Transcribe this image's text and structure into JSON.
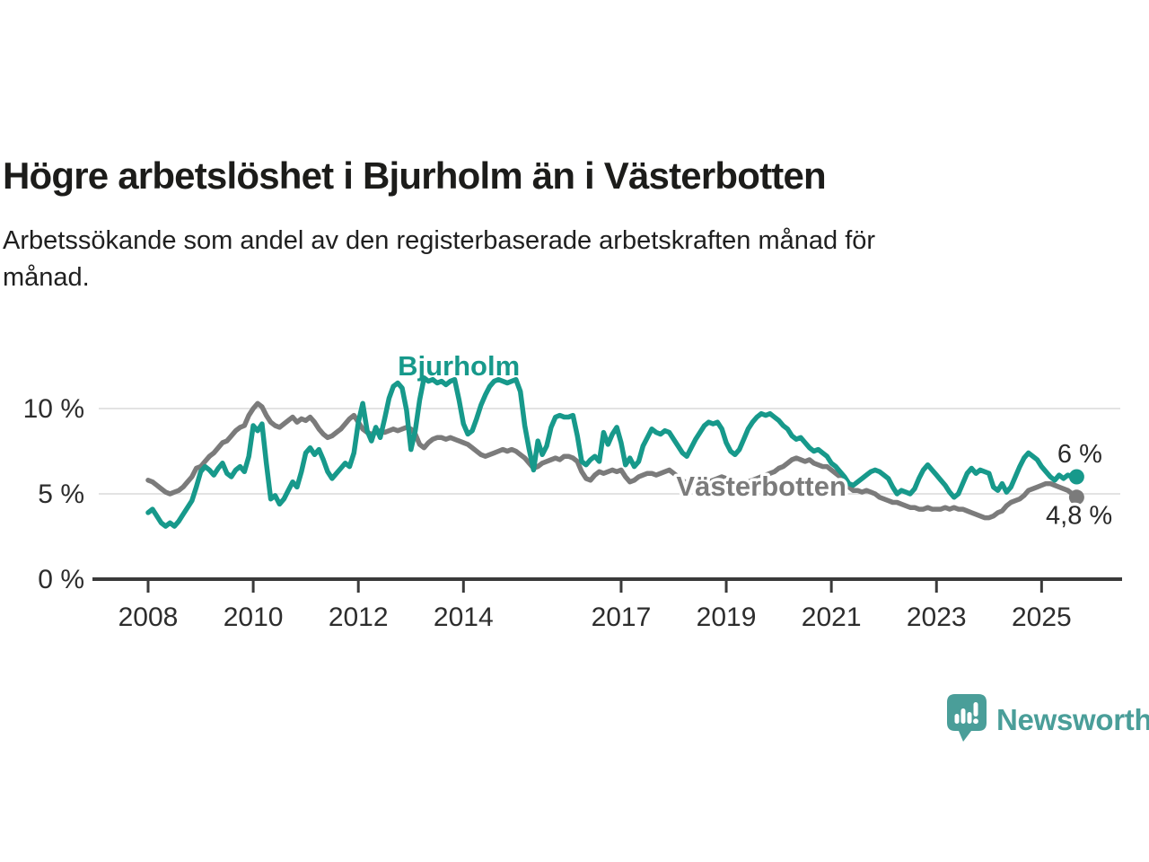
{
  "header": {
    "title": "Högre arbetslöshet i Bjurholm än i Västerbotten",
    "subtitle_lines": [
      "Arbetssökande som andel av den registerbaserade arbetskraften månad för",
      "månad."
    ]
  },
  "footer": {
    "brand": "Newsworthy",
    "logo_icon": "speech-bubble-bar-chart",
    "brand_color": "#4a9e99"
  },
  "chart_data": {
    "type": "line",
    "frequency": "monthly",
    "start": "2008-01",
    "end": "2025-09",
    "grid": "horizontal-only",
    "legend": "inline-labels",
    "x_axis": {
      "tick_years": [
        2008,
        2010,
        2012,
        2014,
        2017,
        2019,
        2021,
        2023,
        2025
      ],
      "range_years": [
        2007.0,
        2026.5
      ]
    },
    "y_axis": {
      "unit": "%",
      "range": [
        0,
        13
      ],
      "ticks": [
        {
          "value": 0,
          "label": "0 %"
        },
        {
          "value": 5,
          "label": "5 %"
        },
        {
          "value": 10,
          "label": "10 %"
        }
      ]
    },
    "colors": {
      "grid": "#dadada",
      "axis": "#3a3a3a",
      "tick_text": "#2d2d2d",
      "bjurholm": "#17998b",
      "vasterbotten": "#7b7b7b"
    },
    "series": [
      {
        "name": "Bjurholm",
        "color": "#17998b",
        "end_value": 6.0,
        "end_label": "6 %",
        "values": [
          3.9,
          4.1,
          3.7,
          3.3,
          3.1,
          3.3,
          3.1,
          3.4,
          3.8,
          4.2,
          4.6,
          5.4,
          6.3,
          6.6,
          6.4,
          6.1,
          6.5,
          6.8,
          6.2,
          6.0,
          6.4,
          6.6,
          6.3,
          7.2,
          9.0,
          8.7,
          9.1,
          6.8,
          4.7,
          4.9,
          4.4,
          4.7,
          5.2,
          5.7,
          5.4,
          6.3,
          7.4,
          7.7,
          7.3,
          7.6,
          7.0,
          6.3,
          5.9,
          6.2,
          6.5,
          6.8,
          6.6,
          7.4,
          9.2,
          10.3,
          8.7,
          8.1,
          8.9,
          8.3,
          9.4,
          10.6,
          11.3,
          11.5,
          11.2,
          9.9,
          7.6,
          8.7,
          10.5,
          11.8,
          11.6,
          11.7,
          11.5,
          11.6,
          11.4,
          11.6,
          11.7,
          10.5,
          9.1,
          8.5,
          8.7,
          9.4,
          10.2,
          10.8,
          11.3,
          11.6,
          11.7,
          11.6,
          11.5,
          11.6,
          11.7,
          11.0,
          9.0,
          7.6,
          6.4,
          8.1,
          7.3,
          7.8,
          8.9,
          9.5,
          9.6,
          9.5,
          9.5,
          9.6,
          8.4,
          6.9,
          6.7,
          7.0,
          7.2,
          6.9,
          8.6,
          7.9,
          8.5,
          8.9,
          8.0,
          6.7,
          7.1,
          6.6,
          6.9,
          7.8,
          8.3,
          8.8,
          8.6,
          8.5,
          8.7,
          8.6,
          8.2,
          7.8,
          7.4,
          7.2,
          7.7,
          8.2,
          8.6,
          9.0,
          9.2,
          9.1,
          9.2,
          8.8,
          8.0,
          7.5,
          7.3,
          7.6,
          8.2,
          8.8,
          9.2,
          9.5,
          9.7,
          9.6,
          9.7,
          9.5,
          9.3,
          9.0,
          8.8,
          8.4,
          8.2,
          8.3,
          8.0,
          7.7,
          7.5,
          7.6,
          7.4,
          7.2,
          6.8,
          6.6,
          6.3,
          6.0,
          5.6,
          5.5,
          5.7,
          5.9,
          6.1,
          6.3,
          6.4,
          6.3,
          6.1,
          5.9,
          5.4,
          5.0,
          5.2,
          5.1,
          5.0,
          5.3,
          5.9,
          6.4,
          6.7,
          6.4,
          6.1,
          5.8,
          5.5,
          5.1,
          4.8,
          5.0,
          5.6,
          6.2,
          6.5,
          6.2,
          6.4,
          6.3,
          6.2,
          5.4,
          5.2,
          5.6,
          5.1,
          5.4,
          6.0,
          6.6,
          7.1,
          7.4,
          7.2,
          7.0,
          6.6,
          6.3,
          6.0,
          5.8,
          6.1,
          5.9,
          6.1,
          6.0,
          6.0
        ]
      },
      {
        "name": "Västerbotten",
        "color": "#7b7b7b",
        "end_value": 4.8,
        "end_label": "4,8 %",
        "values": [
          5.8,
          5.7,
          5.5,
          5.3,
          5.1,
          5.0,
          5.1,
          5.2,
          5.4,
          5.7,
          6.0,
          6.5,
          6.6,
          6.9,
          7.2,
          7.4,
          7.7,
          8.0,
          8.1,
          8.4,
          8.7,
          8.9,
          9.0,
          9.6,
          10.0,
          10.3,
          10.1,
          9.6,
          9.2,
          9.0,
          8.9,
          9.1,
          9.3,
          9.5,
          9.2,
          9.4,
          9.3,
          9.5,
          9.2,
          8.8,
          8.5,
          8.3,
          8.4,
          8.6,
          8.8,
          9.1,
          9.4,
          9.6,
          9.2,
          8.8,
          8.6,
          8.5,
          8.6,
          8.7,
          8.6,
          8.7,
          8.8,
          8.7,
          8.8,
          8.9,
          8.8,
          8.5,
          7.9,
          7.7,
          8.0,
          8.2,
          8.3,
          8.3,
          8.2,
          8.3,
          8.2,
          8.1,
          8.0,
          7.9,
          7.7,
          7.5,
          7.3,
          7.2,
          7.3,
          7.4,
          7.5,
          7.6,
          7.5,
          7.6,
          7.5,
          7.3,
          7.1,
          6.8,
          6.5,
          6.6,
          6.8,
          6.9,
          7.0,
          7.1,
          7.0,
          7.2,
          7.2,
          7.1,
          6.9,
          6.3,
          5.9,
          5.8,
          6.1,
          6.3,
          6.2,
          6.3,
          6.4,
          6.3,
          6.4,
          6.0,
          5.7,
          5.8,
          6.0,
          6.1,
          6.2,
          6.2,
          6.1,
          6.2,
          6.3,
          6.4,
          6.2,
          6.0,
          5.8,
          5.6,
          5.5,
          5.6,
          5.7,
          5.8,
          5.7,
          5.8,
          5.9,
          6.0,
          5.9,
          5.7,
          5.6,
          5.5,
          5.6,
          5.7,
          5.8,
          5.9,
          6.0,
          6.1,
          6.2,
          6.3,
          6.5,
          6.6,
          6.8,
          7.0,
          7.1,
          7.0,
          6.9,
          7.0,
          6.8,
          6.7,
          6.6,
          6.6,
          6.4,
          6.2,
          6.0,
          5.7,
          5.4,
          5.2,
          5.2,
          5.1,
          5.2,
          5.1,
          5.0,
          4.8,
          4.7,
          4.6,
          4.5,
          4.5,
          4.4,
          4.3,
          4.2,
          4.2,
          4.1,
          4.1,
          4.2,
          4.1,
          4.1,
          4.1,
          4.2,
          4.1,
          4.2,
          4.1,
          4.1,
          4.0,
          3.9,
          3.8,
          3.7,
          3.6,
          3.6,
          3.7,
          3.9,
          4.0,
          4.3,
          4.5,
          4.6,
          4.7,
          4.9,
          5.2,
          5.3,
          5.4,
          5.5,
          5.6,
          5.6,
          5.5,
          5.4,
          5.3,
          5.2,
          5.0,
          4.8
        ]
      }
    ],
    "annotations": {
      "series_labels": [
        {
          "text": "Bjurholm",
          "year": 2012.75,
          "pct": 11.95,
          "anchor": "start",
          "color": "#17998b",
          "halo": false
        },
        {
          "text": "Västerbotten",
          "year": 2018.05,
          "pct": 4.9,
          "anchor": "start",
          "color": "#7b7b7b",
          "halo": true
        }
      ],
      "value_labels": [
        {
          "text": "6 %",
          "year": 2025.3,
          "pct": 6.85,
          "anchor": "start"
        },
        {
          "text": "4,8 %",
          "year": 2025.08,
          "pct": 3.25,
          "anchor": "start"
        }
      ]
    }
  }
}
